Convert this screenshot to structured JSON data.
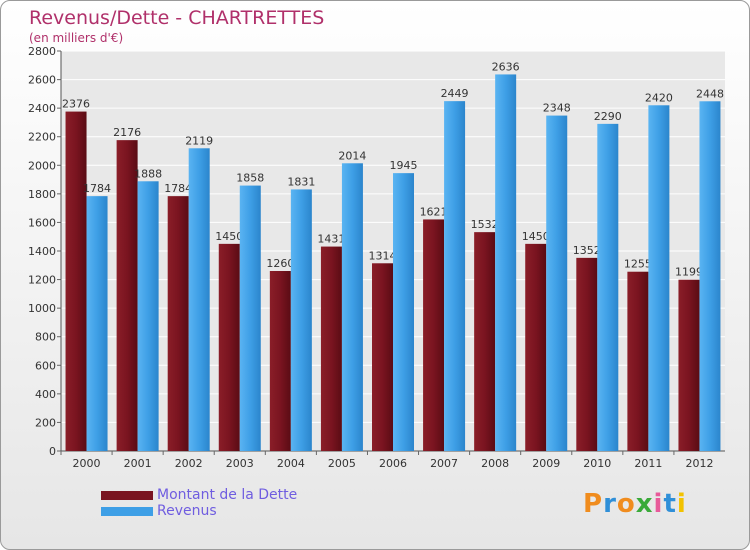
{
  "chart_data": {
    "type": "bar",
    "title": "Revenus/Dette - CHARTRETTES",
    "subtitle": "(en milliers d'€)",
    "categories": [
      "2000",
      "2001",
      "2002",
      "2003",
      "2004",
      "2005",
      "2006",
      "2007",
      "2008",
      "2009",
      "2010",
      "2011",
      "2012"
    ],
    "series": [
      {
        "name": "Montant de la Dette",
        "color": "#7a1420",
        "values": [
          2376,
          2176,
          1784,
          1450,
          1260,
          1431,
          1314,
          1621,
          1532,
          1450,
          1352,
          1255,
          1199
        ]
      },
      {
        "name": "Revenus",
        "color": "#3e9fe6",
        "values": [
          1784,
          1888,
          2119,
          1858,
          1831,
          2014,
          1945,
          2449,
          2636,
          2348,
          2290,
          2420,
          2448
        ]
      }
    ],
    "ylim": [
      0,
      2800
    ],
    "yticks": [
      0,
      200,
      400,
      600,
      800,
      1000,
      1200,
      1400,
      1600,
      1800,
      2000,
      2200,
      2400,
      2600,
      2800
    ],
    "grid": true,
    "legend_position": "bottom-left"
  },
  "logo": {
    "text": "Proxiti",
    "colors": [
      "#f08c1e",
      "#2f8fd8",
      "#f08c1e",
      "#3aaa3a",
      "#e85a9a",
      "#2f8fd8",
      "#f2c200"
    ]
  }
}
